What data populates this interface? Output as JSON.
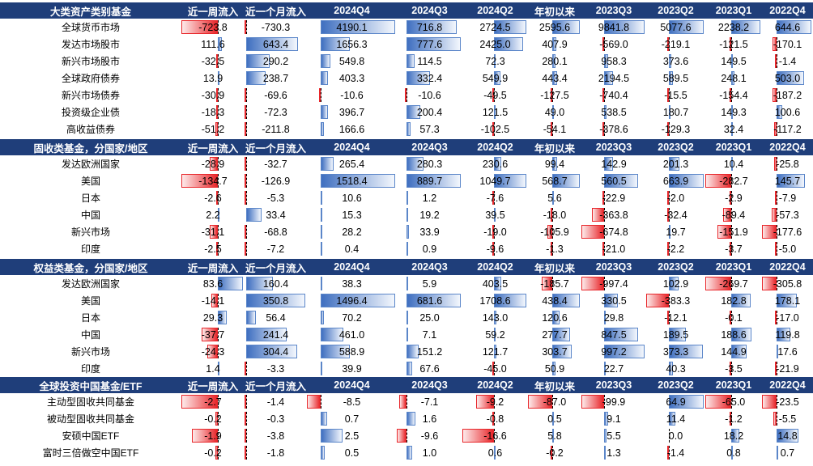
{
  "columns": [
    "近一周流入",
    "近一个月流入",
    "2024Q4",
    "2024Q3",
    "2024Q2",
    "年初以来",
    "2023Q3",
    "2023Q2",
    "2023Q1",
    "2022Q4"
  ],
  "sections": [
    {
      "title": "大类资产类别基金",
      "rows": [
        {
          "name": "全球货币市场",
          "values": [
            -723.8,
            -730.3,
            4190.1,
            716.8,
            2724.5,
            2595.6,
            9841.8,
            5077.6,
            2238.2,
            644.6
          ]
        },
        {
          "name": "发达市场股市",
          "values": [
            111.6,
            643.4,
            1656.3,
            777.6,
            2425.0,
            407.9,
            -569.0,
            -219.1,
            -121.5,
            -170.1
          ]
        },
        {
          "name": "新兴市场股市",
          "values": [
            -32.5,
            290.2,
            549.8,
            114.5,
            72.3,
            280.1,
            958.3,
            373.6,
            149.5,
            -1.4
          ]
        },
        {
          "name": "全球政府债券",
          "values": [
            13.9,
            238.7,
            403.3,
            332.4,
            549.9,
            443.4,
            2194.5,
            589.5,
            248.1,
            503.0
          ]
        },
        {
          "name": "新兴市场债券",
          "values": [
            -30.9,
            -69.6,
            -10.6,
            -10.6,
            -49.5,
            -127.5,
            -740.4,
            -15.5,
            -154.4,
            -187.2
          ]
        },
        {
          "name": "投资级企业债",
          "values": [
            -18.3,
            -72.3,
            396.7,
            200.4,
            121.5,
            49.0,
            538.5,
            180.7,
            149.3,
            100.6
          ]
        },
        {
          "name": "高收益债券",
          "values": [
            -51.2,
            -211.8,
            166.6,
            57.3,
            -102.5,
            -54.1,
            -378.6,
            -129.3,
            32.4,
            -117.2
          ]
        }
      ]
    },
    {
      "title": "固收类基金，分国家/地区",
      "rows": [
        {
          "name": "发达欧洲国家",
          "values": [
            -28.9,
            -32.7,
            265.4,
            280.3,
            230.6,
            99.4,
            142.9,
            201.3,
            10.4,
            -25.8
          ]
        },
        {
          "name": "美国",
          "values": [
            -134.7,
            -126.9,
            1518.4,
            889.7,
            1049.7,
            568.7,
            560.5,
            663.9,
            -282.7,
            145.7
          ]
        },
        {
          "name": "日本",
          "values": [
            -2.6,
            -5.3,
            10.6,
            1.2,
            -7.6,
            5.6,
            -22.9,
            -2.0,
            -2.9,
            -7.9
          ]
        },
        {
          "name": "中国",
          "values": [
            2.2,
            33.4,
            15.3,
            19.2,
            39.5,
            -18.0,
            -363.8,
            -32.4,
            -89.4,
            -57.3
          ]
        },
        {
          "name": "新兴市场",
          "values": [
            -31.1,
            -68.8,
            28.2,
            33.9,
            -19.0,
            -105.9,
            -674.8,
            19.7,
            -151.9,
            -177.6
          ]
        },
        {
          "name": "印度",
          "values": [
            -2.5,
            -7.2,
            0.4,
            0.9,
            -9.6,
            -1.3,
            -21.0,
            -2.2,
            -3.7,
            -5.0
          ]
        }
      ]
    },
    {
      "title": "权益类基金，分国家/地区",
      "rows": [
        {
          "name": "发达欧洲国家",
          "values": [
            83.6,
            160.4,
            38.3,
            5.9,
            403.5,
            -185.7,
            -997.4,
            102.9,
            -269.7,
            -305.8
          ]
        },
        {
          "name": "美国",
          "values": [
            -14.1,
            350.8,
            1496.4,
            681.6,
            1708.6,
            438.4,
            330.5,
            -383.3,
            182.8,
            178.1
          ]
        },
        {
          "name": "日本",
          "values": [
            29.3,
            56.4,
            70.2,
            25.0,
            143.0,
            120.6,
            29.8,
            -12.1,
            -0.1,
            -17.0
          ]
        },
        {
          "name": "中国",
          "values": [
            -37.7,
            241.4,
            461.0,
            7.1,
            59.2,
            277.7,
            847.5,
            189.5,
            188.6,
            119.8
          ]
        },
        {
          "name": "新兴市场",
          "values": [
            -24.3,
            304.4,
            588.9,
            151.2,
            121.7,
            303.7,
            997.2,
            373.3,
            144.9,
            17.6
          ]
        },
        {
          "name": "印度",
          "values": [
            1.4,
            -3.3,
            39.9,
            67.6,
            -45.0,
            50.9,
            22.7,
            40.3,
            -3.5,
            -21.9
          ]
        }
      ]
    },
    {
      "title": "全球投资中国基金/ETF",
      "rows": [
        {
          "name": "主动型固收共同基金",
          "values": [
            -2.7,
            -1.4,
            -8.5,
            -7.1,
            -9.2,
            -87.0,
            -99.9,
            64.9,
            -65.0,
            -23.5
          ]
        },
        {
          "name": "被动型固收共同基金",
          "values": [
            -0.2,
            -0.3,
            0.7,
            1.6,
            -0.8,
            0.5,
            9.1,
            11.4,
            -1.2,
            -5.5
          ]
        },
        {
          "name": "安硕中国ETF",
          "values": [
            -1.9,
            -3.8,
            2.5,
            -9.6,
            -16.6,
            5.8,
            5.5,
            0.0,
            18.2,
            14.8
          ]
        },
        {
          "name": "富时三倍做空中国ETF",
          "values": [
            -0.2,
            -1.8,
            0.5,
            1.0,
            0.6,
            -0.2,
            1.3,
            -1.4,
            0.8,
            0.7
          ]
        }
      ]
    }
  ]
}
